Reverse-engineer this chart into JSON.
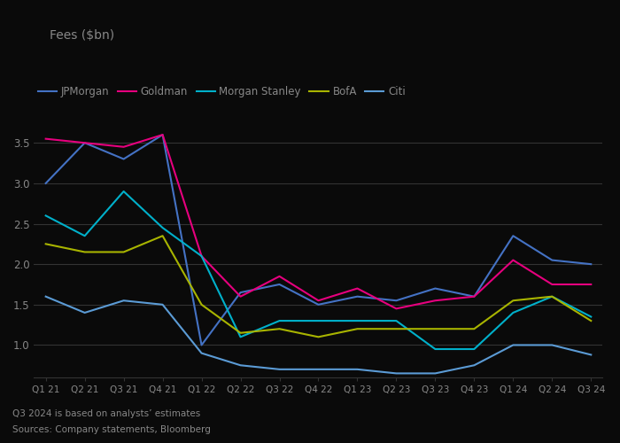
{
  "title": "Fees ($bn)",
  "x_labels": [
    "Q1 21",
    "Q2 21",
    "Q3 21",
    "Q4 21",
    "Q1 22",
    "Q2 22",
    "Q3 22",
    "Q4 22",
    "Q1 23",
    "Q2 23",
    "Q3 23",
    "Q4 23",
    "Q1 24",
    "Q2 24",
    "Q3 24"
  ],
  "series": {
    "JPMorgan": {
      "color": "#4472c4",
      "values": [
        3.0,
        3.5,
        3.3,
        3.6,
        1.0,
        1.65,
        1.75,
        1.5,
        1.6,
        1.55,
        1.7,
        1.6,
        2.35,
        2.05,
        2.0
      ]
    },
    "Goldman": {
      "color": "#e6007e",
      "values": [
        3.55,
        3.5,
        3.45,
        3.6,
        2.1,
        1.6,
        1.85,
        1.55,
        1.7,
        1.45,
        1.55,
        1.6,
        2.05,
        1.75,
        1.75
      ]
    },
    "Morgan Stanley": {
      "color": "#00b0ca",
      "values": [
        2.6,
        2.35,
        2.9,
        2.45,
        2.1,
        1.1,
        1.3,
        1.3,
        1.3,
        1.3,
        0.95,
        0.95,
        1.4,
        1.6,
        1.35
      ]
    },
    "BofA": {
      "color": "#a8b400",
      "values": [
        2.25,
        2.15,
        2.15,
        2.35,
        1.5,
        1.15,
        1.2,
        1.1,
        1.2,
        1.2,
        1.2,
        1.2,
        1.55,
        1.6,
        1.3
      ]
    },
    "Citi": {
      "color": "#5b9bd5",
      "values": [
        1.6,
        1.4,
        1.55,
        1.5,
        0.9,
        0.75,
        0.7,
        0.7,
        0.7,
        0.65,
        0.65,
        0.75,
        1.0,
        1.0,
        0.88
      ]
    }
  },
  "ylim": [
    0.6,
    3.75
  ],
  "yticks": [
    1.0,
    1.5,
    2.0,
    2.5,
    3.0,
    3.5
  ],
  "footnote1": "Q3 2024 is based on analysts’ estimates",
  "footnote2": "Sources: Company statements, Bloomberg",
  "background_color": "#0a0a0a",
  "grid_color": "#333333",
  "text_color": "#888888",
  "title_color": "#888888",
  "legend_text_color": "#888888"
}
